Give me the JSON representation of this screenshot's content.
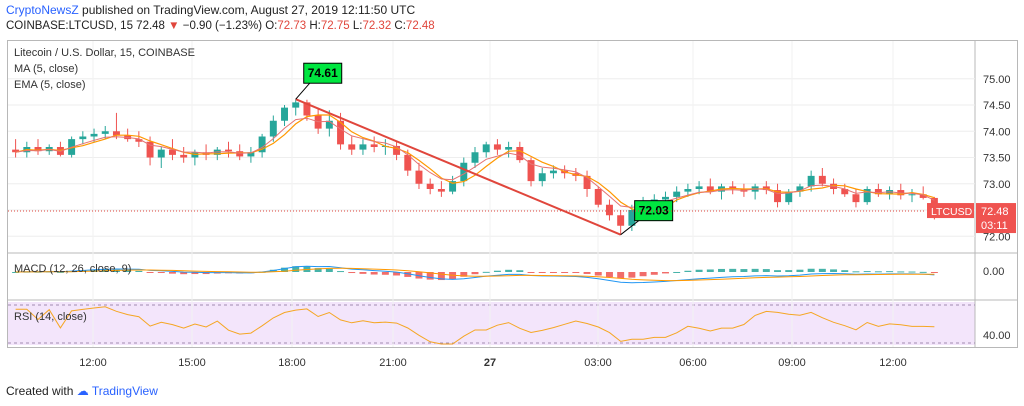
{
  "header": {
    "publisher": "CryptoNewsZ",
    "published_text": "published on TradingView.com, August 27, 2019 12:11:50 UTC",
    "symbol": "COINBASE:LTCUSD, 15",
    "last": "72.48",
    "change": "−0.90 (−1.23%)",
    "ohlc_label_o": "O:",
    "o": "72.73",
    "ohlc_label_h": "H:",
    "h": "72.75",
    "ohlc_label_l": "L:",
    "l": "72.32",
    "ohlc_label_c": "C:",
    "c": "72.48"
  },
  "legend": {
    "title": "Litecoin / U.S. Dollar, 15, COINBASE",
    "ma": "MA (5, close)",
    "ema": "EMA (5, close)",
    "macd": "MACD (12, 26, close, 9)",
    "rsi": "RSI (14, close)"
  },
  "annotations": {
    "high_label": "74.61",
    "low_label": "72.03"
  },
  "price_tag": {
    "symbol": "LTCUSD",
    "price": "72.48",
    "countdown": "03:11"
  },
  "footer": {
    "created_with": "Created with",
    "brand": "TradingView"
  },
  "colors": {
    "up": "#26a69a",
    "down": "#ef5350",
    "ma": "#ff9800",
    "ema": "#e57373",
    "macd": "#2196f3",
    "signal": "#ff9800",
    "rsi": "#f5a623",
    "trend": "#e0463c",
    "callout": "#00e640"
  },
  "chart_data": [
    {
      "type": "candlestick",
      "title": "Litecoin / U.S. Dollar, 15, COINBASE",
      "ylim": [
        71.7,
        75.7
      ],
      "y_ticks": [
        "75.00",
        "74.50",
        "74.00",
        "73.50",
        "73.00",
        "72.50",
        "72.00"
      ],
      "x_ticks": [
        "12:00",
        "15:00",
        "18:00",
        "21:00",
        "27",
        "03:00",
        "06:00",
        "09:00",
        "12:00"
      ],
      "candles": [
        [
          73.65,
          73.85,
          73.5,
          73.6
        ],
        [
          73.6,
          73.8,
          73.5,
          73.7
        ],
        [
          73.7,
          73.85,
          73.55,
          73.62
        ],
        [
          73.62,
          73.75,
          73.55,
          73.7
        ],
        [
          73.7,
          73.8,
          73.52,
          73.55
        ],
        [
          73.55,
          73.9,
          73.5,
          73.85
        ],
        [
          73.85,
          74.0,
          73.75,
          73.9
        ],
        [
          73.9,
          74.05,
          73.8,
          73.95
        ],
        [
          73.95,
          74.1,
          73.85,
          74.0
        ],
        [
          74.0,
          74.35,
          73.85,
          73.92
        ],
        [
          73.92,
          74.05,
          73.8,
          73.85
        ],
        [
          73.85,
          74.0,
          73.7,
          73.8
        ],
        [
          73.8,
          73.9,
          73.35,
          73.5
        ],
        [
          73.5,
          73.7,
          73.3,
          73.65
        ],
        [
          73.65,
          73.85,
          73.45,
          73.55
        ],
        [
          73.55,
          73.7,
          73.4,
          73.5
        ],
        [
          73.5,
          73.65,
          73.35,
          73.6
        ],
        [
          73.6,
          73.75,
          73.45,
          73.55
        ],
        [
          73.55,
          73.7,
          73.45,
          73.65
        ],
        [
          73.65,
          73.8,
          73.5,
          73.62
        ],
        [
          73.62,
          73.75,
          73.45,
          73.52
        ],
        [
          73.52,
          73.7,
          73.4,
          73.6
        ],
        [
          73.6,
          73.95,
          73.5,
          73.9
        ],
        [
          73.9,
          74.3,
          73.8,
          74.2
        ],
        [
          74.2,
          74.5,
          74.1,
          74.45
        ],
        [
          74.45,
          74.61,
          74.3,
          74.55
        ],
        [
          74.55,
          74.6,
          74.2,
          74.3
        ],
        [
          74.3,
          74.45,
          73.95,
          74.05
        ],
        [
          74.05,
          74.4,
          73.9,
          74.2
        ],
        [
          74.2,
          74.35,
          73.65,
          73.75
        ],
        [
          73.75,
          73.9,
          73.55,
          73.65
        ],
        [
          73.65,
          73.85,
          73.55,
          73.75
        ],
        [
          73.75,
          73.9,
          73.6,
          73.7
        ],
        [
          73.7,
          73.85,
          73.55,
          73.72
        ],
        [
          73.72,
          73.8,
          73.45,
          73.55
        ],
        [
          73.55,
          73.65,
          73.15,
          73.25
        ],
        [
          73.25,
          73.4,
          72.9,
          73.0
        ],
        [
          73.0,
          73.1,
          72.8,
          72.9
        ],
        [
          72.9,
          73.05,
          72.75,
          72.85
        ],
        [
          72.85,
          73.15,
          72.8,
          73.05
        ],
        [
          73.05,
          73.5,
          72.95,
          73.4
        ],
        [
          73.4,
          73.7,
          73.3,
          73.6
        ],
        [
          73.6,
          73.8,
          73.5,
          73.75
        ],
        [
          73.75,
          73.85,
          73.55,
          73.65
        ],
        [
          73.65,
          73.8,
          73.5,
          73.7
        ],
        [
          73.7,
          73.8,
          73.4,
          73.45
        ],
        [
          73.45,
          73.5,
          72.95,
          73.05
        ],
        [
          73.05,
          73.3,
          72.95,
          73.2
        ],
        [
          73.2,
          73.35,
          73.1,
          73.25
        ],
        [
          73.25,
          73.35,
          73.1,
          73.2
        ],
        [
          73.2,
          73.3,
          73.05,
          73.15
        ],
        [
          73.15,
          73.25,
          72.75,
          72.9
        ],
        [
          72.9,
          72.95,
          72.55,
          72.6
        ],
        [
          72.6,
          72.7,
          72.3,
          72.4
        ],
        [
          72.4,
          72.5,
          72.03,
          72.2
        ],
        [
          72.2,
          72.6,
          72.1,
          72.5
        ],
        [
          72.5,
          72.75,
          72.4,
          72.65
        ],
        [
          72.65,
          72.8,
          72.5,
          72.7
        ],
        [
          72.7,
          72.85,
          72.55,
          72.75
        ],
        [
          72.75,
          72.95,
          72.65,
          72.85
        ],
        [
          72.85,
          73.0,
          72.75,
          72.9
        ],
        [
          72.9,
          73.05,
          72.8,
          72.95
        ],
        [
          72.95,
          73.1,
          72.8,
          72.85
        ],
        [
          72.85,
          73.0,
          72.7,
          72.95
        ],
        [
          72.95,
          73.05,
          72.8,
          72.9
        ],
        [
          72.9,
          73.0,
          72.75,
          72.85
        ],
        [
          72.85,
          73.0,
          72.7,
          72.95
        ],
        [
          72.95,
          73.05,
          72.8,
          72.88
        ],
        [
          72.88,
          73.0,
          72.55,
          72.65
        ],
        [
          72.65,
          72.9,
          72.6,
          72.85
        ],
        [
          72.85,
          73.0,
          72.75,
          72.95
        ],
        [
          72.95,
          73.25,
          72.85,
          73.15
        ],
        [
          73.15,
          73.3,
          72.95,
          73.0
        ],
        [
          73.0,
          73.1,
          72.8,
          72.9
        ],
        [
          72.9,
          73.0,
          72.75,
          72.8
        ],
        [
          72.8,
          72.9,
          72.55,
          72.65
        ],
        [
          72.65,
          72.95,
          72.6,
          72.9
        ],
        [
          72.9,
          73.0,
          72.75,
          72.8
        ],
        [
          72.8,
          72.95,
          72.7,
          72.88
        ],
        [
          72.88,
          73.0,
          72.7,
          72.78
        ],
        [
          72.78,
          72.9,
          72.65,
          72.8
        ],
        [
          72.8,
          72.95,
          72.7,
          72.73
        ],
        [
          72.73,
          72.75,
          72.32,
          72.48
        ]
      ]
    },
    {
      "type": "line",
      "title": "MACD (12, 26, close, 9)",
      "y_ticks": [
        "0.00"
      ]
    },
    {
      "type": "line",
      "title": "RSI (14, close)",
      "y_ticks": [
        "40.00"
      ]
    }
  ]
}
